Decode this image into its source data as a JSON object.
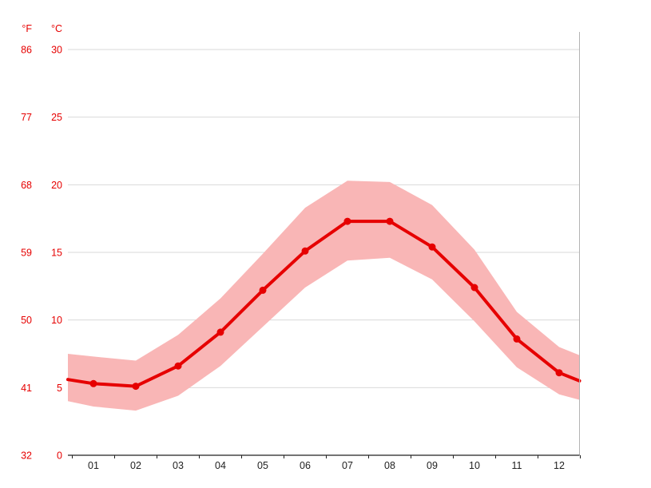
{
  "chart_data": {
    "type": "line",
    "title": "",
    "x_tick_labels": [
      "01",
      "02",
      "03",
      "04",
      "05",
      "06",
      "07",
      "08",
      "09",
      "10",
      "11",
      "12"
    ],
    "y_axis": {
      "unit_f": "°F",
      "unit_c": "°C",
      "ticks_c": [
        0,
        5,
        10,
        15,
        20,
        25,
        30
      ],
      "ticks_f": [
        32,
        41,
        50,
        59,
        68,
        77,
        86
      ]
    },
    "ylim": [
      0,
      30
    ],
    "grid": true,
    "legend": "none",
    "series": [
      {
        "name": "mean-temperature",
        "values": [
          5.3,
          5.1,
          6.6,
          9.1,
          12.2,
          15.1,
          17.3,
          17.3,
          15.4,
          12.4,
          8.6,
          6.1
        ]
      },
      {
        "name": "range-upper",
        "values": [
          7.3,
          7.0,
          8.9,
          11.6,
          14.9,
          18.3,
          20.3,
          20.2,
          18.5,
          15.2,
          10.6,
          8.0
        ]
      },
      {
        "name": "range-lower",
        "values": [
          3.6,
          3.3,
          4.4,
          6.6,
          9.5,
          12.4,
          14.4,
          14.6,
          13.0,
          9.9,
          6.5,
          4.5
        ]
      }
    ],
    "edges": {
      "left": {
        "mean": 5.6,
        "upper": 7.5,
        "lower": 4.0
      },
      "right": {
        "mean": 5.5,
        "upper": 7.4,
        "lower": 4.1
      }
    },
    "colors": {
      "line": "#e60000",
      "band": "#f9b6b6",
      "axis_text": "#e60000",
      "month_text": "#222222",
      "gridline": "#d9d9d9",
      "axis_line": "#222222",
      "border_line": "#b3b3b3",
      "background": "#ffffff"
    }
  }
}
